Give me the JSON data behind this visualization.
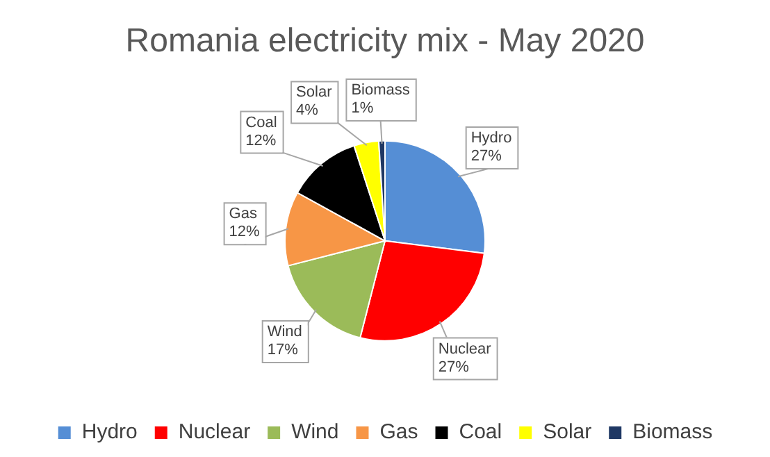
{
  "chart_data": {
    "type": "pie",
    "title": "Romania electricity mix - May 2020",
    "categories": [
      "Hydro",
      "Nuclear",
      "Wind",
      "Gas",
      "Coal",
      "Solar",
      "Biomass"
    ],
    "values": [
      27,
      27,
      17,
      12,
      12,
      4,
      1
    ],
    "colors": [
      "#558ed5",
      "#ff0000",
      "#9bbb59",
      "#f79646",
      "#000000",
      "#ffff00",
      "#1f3864"
    ],
    "value_labels": [
      "27%",
      "27%",
      "17%",
      "12%",
      "12%",
      "4%",
      "1%"
    ],
    "legend": "bottom"
  }
}
